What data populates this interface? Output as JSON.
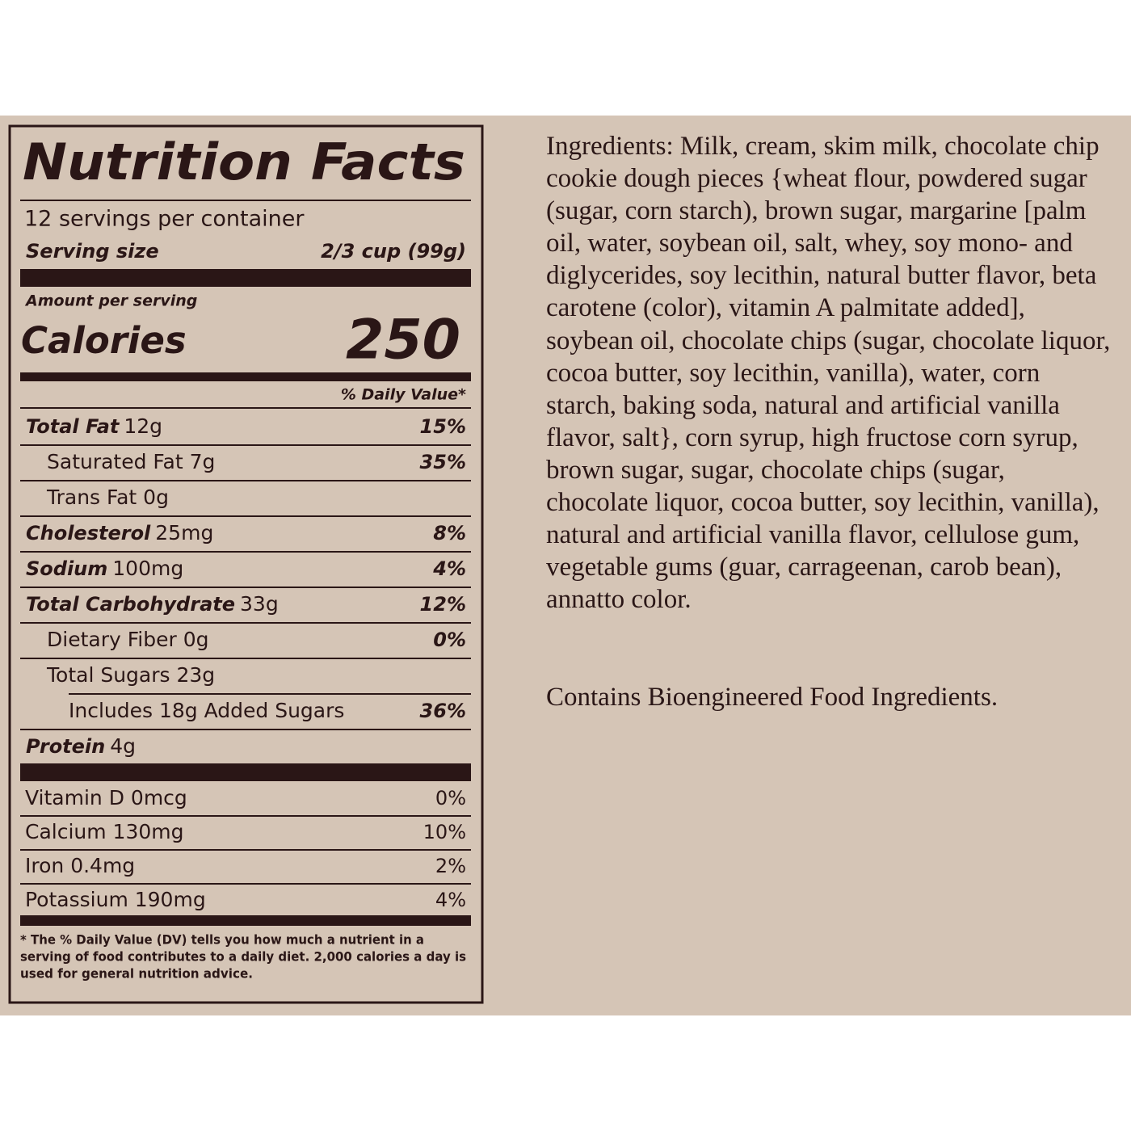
{
  "nutrition": {
    "title": "Nutrition Facts",
    "servings": "12 servings per container",
    "serving_size_label": "Serving size",
    "serving_size": "2/3 cup (99g)",
    "amount_per_serving": "Amount per serving",
    "calories_label": "Calories",
    "calories": 250,
    "daily_value_header": "% Daily Value*",
    "nutrients": [
      {
        "name": "Total Fat",
        "amount": "12g",
        "dv": "15%"
      },
      {
        "label": "Saturated Fat 7g",
        "dv": "35%"
      },
      {
        "label": "Trans Fat 0g"
      },
      {
        "name": "Cholesterol",
        "amount": "25mg",
        "dv": "8%"
      },
      {
        "name": "Sodium",
        "amount": "100mg",
        "dv": "4%"
      },
      {
        "name": "Total Carbohydrate",
        "amount": "33g",
        "dv": "12%"
      },
      {
        "label": "Dietary Fiber 0g",
        "dv": "0%"
      },
      {
        "label": "Total Sugars 23g"
      },
      {
        "label": "Includes 18g Added Sugars",
        "dv": "36%"
      },
      {
        "name": "Protein",
        "amount": "4g"
      }
    ],
    "vitamins": [
      {
        "label": "Vitamin D 0mcg",
        "dv": "0%"
      },
      {
        "label": "Calcium 130mg",
        "dv": "10%"
      },
      {
        "label": "Iron 0.4mg",
        "dv": "2%"
      },
      {
        "label": "Potassium 190mg",
        "dv": "4%"
      }
    ],
    "footnote": [
      "* The % Daily Value (DV) tells you how much a nutrient in a",
      "serving of food contributes to a daily diet. 2,000 calories a day is",
      "used for general nutrition advice."
    ]
  },
  "ingredients": "Ingredients: Milk, cream, skim milk, chocolate chip cookie dough pieces {wheat flour, powdered sugar (sugar, corn starch), brown sugar, margarine [palm oil, water, soybean oil, salt, whey, soy mono- and diglycerides, soy lecithin, natural butter flavor, beta carotene (color), vitamin A palmitate added], soybean oil, chocolate chips (sugar, chocolate liquor, cocoa butter, soy lecithin, vanilla), water, corn starch, baking soda, natural and artificial vanilla flavor, salt}, corn syrup, high fructose corn syrup, brown sugar, sugar, chocolate chips (sugar, chocolate liquor, cocoa butter, soy lecithin, vanilla), natural and artificial vanilla flavor, cellulose gum, vegetable gums (guar, carrageenan, carob bean), annatto color.",
  "contains": "Contains Bioengineered Food Ingredients."
}
